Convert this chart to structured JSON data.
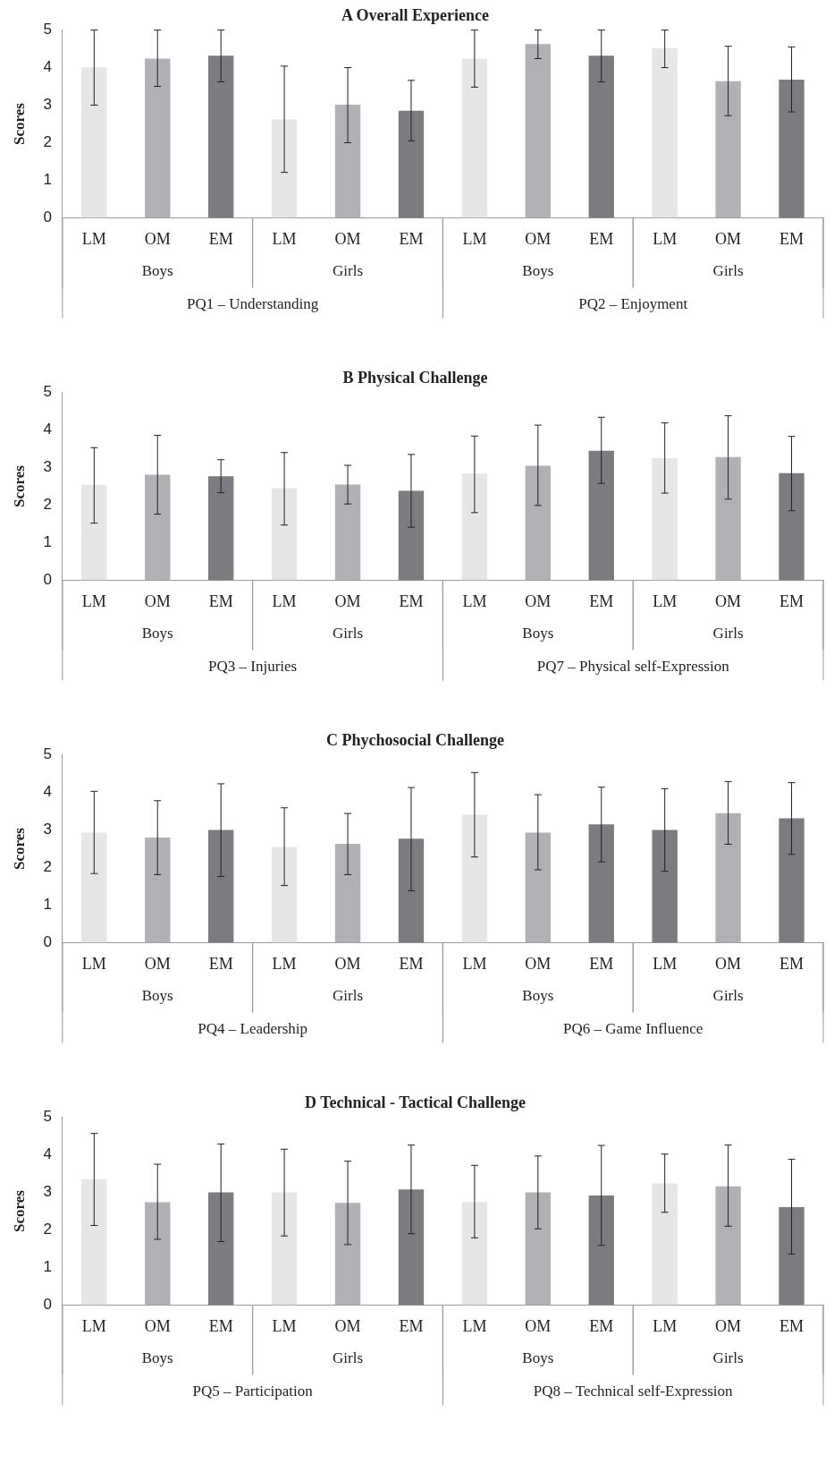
{
  "chart_data": [
    {
      "type": "bar",
      "title": "A Overall Experience",
      "ylabel": "Scores",
      "categories": [
        "LM",
        "OM",
        "EM",
        "LM",
        "OM",
        "EM",
        "LM",
        "OM",
        "EM",
        "LM",
        "OM",
        "EM"
      ],
      "values": [
        4.01,
        4.24,
        4.32,
        2.62,
        3.01,
        2.85,
        4.24,
        4.63,
        4.32,
        4.52,
        3.64,
        3.68
      ],
      "colors": [
        "#e6e6e6",
        "#b0b1b4",
        "#7b7c80",
        "#e6e6e6",
        "#b0b1b4",
        "#7b7c80",
        "#e6e6e6",
        "#b0b1b4",
        "#7b7c80",
        "#e6e6e6",
        "#b0b1b4",
        "#7b7c80"
      ],
      "errors": [
        [
          3.0,
          5.0
        ],
        [
          3.5,
          5.0
        ],
        [
          3.62,
          5.0
        ],
        [
          1.21,
          4.04
        ],
        [
          2.0,
          4.0
        ],
        [
          2.05,
          3.66
        ],
        [
          3.48,
          5.0
        ],
        [
          4.24,
          5.0
        ],
        [
          3.62,
          5.0
        ],
        [
          4.0,
          5.0
        ],
        [
          2.72,
          4.57
        ],
        [
          2.82,
          4.55
        ]
      ],
      "ylim": [
        0,
        5
      ],
      "yticks": [
        0,
        1,
        2,
        3,
        4,
        5
      ],
      "grid": false,
      "legend": false,
      "annotations": [
        "Boys",
        "Girls",
        "Boys",
        "Girls",
        "PQ1 – Understanding",
        "PQ2 – Enjoyment"
      ]
    },
    {
      "type": "bar",
      "title": "B Physical Challenge",
      "ylabel": "Scores",
      "categories": [
        "LM",
        "OM",
        "EM",
        "LM",
        "OM",
        "EM",
        "LM",
        "OM",
        "EM",
        "LM",
        "OM",
        "EM"
      ],
      "values": [
        2.54,
        2.81,
        2.77,
        2.45,
        2.55,
        2.38,
        2.84,
        3.05,
        3.45,
        3.25,
        3.28,
        2.85
      ],
      "colors": [
        "#e6e6e6",
        "#b0b1b4",
        "#7b7c80",
        "#e6e6e6",
        "#b0b1b4",
        "#7b7c80",
        "#e6e6e6",
        "#b0b1b4",
        "#7b7c80",
        "#e6e6e6",
        "#b0b1b4",
        "#7b7c80"
      ],
      "errors": [
        [
          1.52,
          3.53
        ],
        [
          1.76,
          3.86
        ],
        [
          2.33,
          3.21
        ],
        [
          1.47,
          3.4
        ],
        [
          2.03,
          3.06
        ],
        [
          1.41,
          3.35
        ],
        [
          1.8,
          3.84
        ],
        [
          1.99,
          4.13
        ],
        [
          2.58,
          4.34
        ],
        [
          2.32,
          4.19
        ],
        [
          2.16,
          4.38
        ],
        [
          1.85,
          3.83
        ]
      ],
      "ylim": [
        0,
        5
      ],
      "yticks": [
        0,
        1,
        2,
        3,
        4,
        5
      ],
      "grid": false,
      "legend": false,
      "annotations": [
        "Boys",
        "Girls",
        "Boys",
        "Girls",
        "PQ3 – Injuries",
        "PQ7 – Physical self-Expression"
      ]
    },
    {
      "type": "bar",
      "title": "C Phychosocial Challenge",
      "ylabel": "Scores",
      "categories": [
        "LM",
        "OM",
        "EM",
        "LM",
        "OM",
        "EM",
        "LM",
        "OM",
        "EM",
        "LM",
        "OM",
        "EM"
      ],
      "values": [
        2.93,
        2.8,
        3.0,
        2.55,
        2.63,
        2.77,
        3.41,
        2.93,
        3.15,
        3.0,
        3.45,
        3.31
      ],
      "colors": [
        "#e6e6e6",
        "#b0b1b4",
        "#7b7c80",
        "#e6e6e6",
        "#b0b1b4",
        "#7b7c80",
        "#e6e6e6",
        "#b0b1b4",
        "#7b7c80",
        "#7b7c80",
        "#b0b1b4",
        "#7b7c80"
      ],
      "errors": [
        [
          1.84,
          4.03
        ],
        [
          1.81,
          3.78
        ],
        [
          1.76,
          4.23
        ],
        [
          1.52,
          3.59
        ],
        [
          1.81,
          3.44
        ],
        [
          1.38,
          4.13
        ],
        [
          2.28,
          4.53
        ],
        [
          1.94,
          3.94
        ],
        [
          2.15,
          4.14
        ],
        [
          1.9,
          4.1
        ],
        [
          2.62,
          4.29
        ],
        [
          2.35,
          4.26
        ]
      ],
      "ylim": [
        0,
        5
      ],
      "yticks": [
        0,
        1,
        2,
        3,
        4,
        5
      ],
      "grid": false,
      "legend": false,
      "annotations": [
        "Boys",
        "Girls",
        "Boys",
        "Girls",
        "PQ4 – Leadership",
        "PQ6 – Game Influence"
      ]
    },
    {
      "type": "bar",
      "title": "D Technical - Tactical Challenge",
      "ylabel": "Scores",
      "categories": [
        "LM",
        "OM",
        "EM",
        "LM",
        "OM",
        "EM",
        "LM",
        "OM",
        "EM",
        "LM",
        "OM",
        "EM"
      ],
      "values": [
        3.35,
        2.74,
        3.0,
        3.0,
        2.72,
        3.08,
        2.74,
        3.0,
        2.92,
        3.24,
        3.16,
        2.61
      ],
      "colors": [
        "#e6e6e6",
        "#b0b1b4",
        "#7b7c80",
        "#e6e6e6",
        "#b0b1b4",
        "#7b7c80",
        "#e6e6e6",
        "#b0b1b4",
        "#7b7c80",
        "#e6e6e6",
        "#b0b1b4",
        "#7b7c80"
      ],
      "errors": [
        [
          2.12,
          4.57
        ],
        [
          1.75,
          3.75
        ],
        [
          1.69,
          4.29
        ],
        [
          1.84,
          4.15
        ],
        [
          1.61,
          3.83
        ],
        [
          1.9,
          4.26
        ],
        [
          1.79,
          3.72
        ],
        [
          2.03,
          3.97
        ],
        [
          1.59,
          4.25
        ],
        [
          2.47,
          4.02
        ],
        [
          2.1,
          4.26
        ],
        [
          1.36,
          3.88
        ]
      ],
      "ylim": [
        0,
        5
      ],
      "yticks": [
        0,
        1,
        2,
        3,
        4,
        5
      ],
      "grid": false,
      "legend": false,
      "annotations": [
        "Boys",
        "Girls",
        "Boys",
        "Girls",
        "PQ5 – Participation",
        "PQ8 – Technical self-Expression"
      ]
    }
  ]
}
